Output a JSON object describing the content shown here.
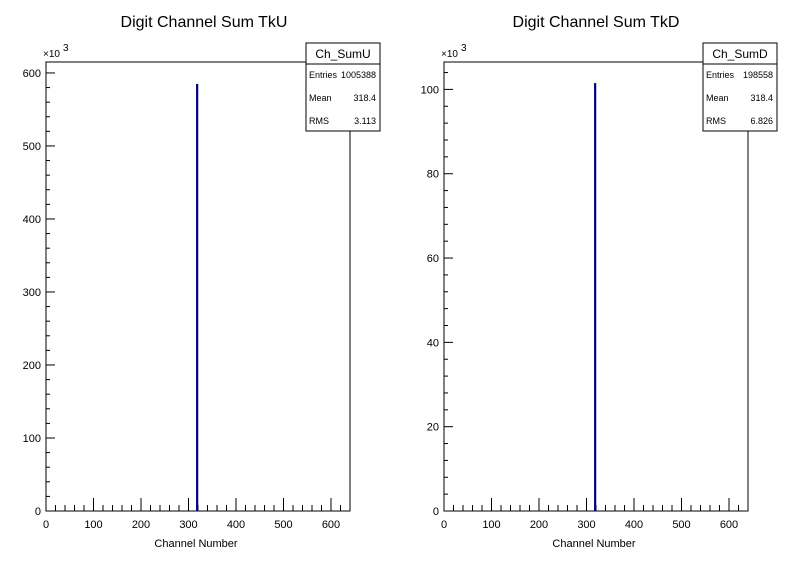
{
  "chart_data": [
    {
      "type": "bar",
      "title": "Digit Channel Sum TkU",
      "xlabel": "Channel Number",
      "ylabel": "",
      "xlim": [
        0,
        640
      ],
      "ylim": [
        0,
        615
      ],
      "x_ticks": [
        "0",
        "100",
        "200",
        "300",
        "400",
        "500",
        "600"
      ],
      "y_ticks": [
        "0",
        "100",
        "200",
        "300",
        "400",
        "500",
        "600"
      ],
      "y_multiplier": "×10",
      "y_multiplier_exp": "3",
      "series": [
        {
          "x": [
            318
          ],
          "values": [
            585
          ],
          "color": "#000080"
        }
      ],
      "stats": {
        "name": "Ch_SumU",
        "rows": [
          {
            "label": "Entries",
            "value": "1005388"
          },
          {
            "label": "Mean",
            "value": "318.4"
          },
          {
            "label": "RMS",
            "value": "3.113"
          }
        ]
      }
    },
    {
      "type": "bar",
      "title": "Digit Channel Sum TkD",
      "xlabel": "Channel Number",
      "ylabel": "",
      "xlim": [
        0,
        640
      ],
      "ylim": [
        0,
        106.5
      ],
      "x_ticks": [
        "0",
        "100",
        "200",
        "300",
        "400",
        "500",
        "600"
      ],
      "y_ticks": [
        "0",
        "20",
        "40",
        "60",
        "80",
        "100"
      ],
      "y_multiplier": "×10",
      "y_multiplier_exp": "3",
      "series": [
        {
          "x": [
            318
          ],
          "values": [
            101.5
          ],
          "color": "#000080"
        }
      ],
      "stats": {
        "name": "Ch_SumD",
        "rows": [
          {
            "label": "Entries",
            "value": "198558"
          },
          {
            "label": "Mean",
            "value": "318.4"
          },
          {
            "label": "RMS",
            "value": "6.826"
          }
        ]
      }
    }
  ]
}
